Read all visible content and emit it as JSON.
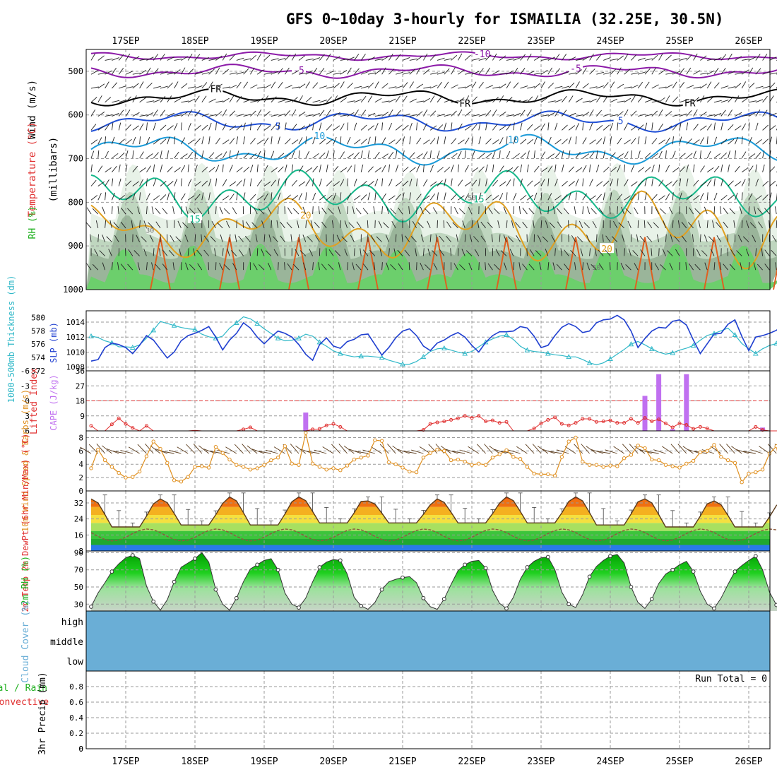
{
  "title": "GFS 0~10day 3-hourly for ISMAILIA (32.25E, 30.5N)",
  "days": [
    "17SEP",
    "18SEP",
    "19SEP",
    "20SEP",
    "21SEP",
    "22SEP",
    "23SEP",
    "24SEP",
    "25SEP",
    "26SEP"
  ],
  "colors": {
    "frame": "#000000",
    "grid": "#9a9a9a",
    "rh_light": "#e8f2e8",
    "rh_mid": "#bfd6bf",
    "rh_dark": "#9ab59a",
    "rh_green": "#6ccf6c",
    "iso_m10": "#8c1aa8",
    "iso_m5": "#8c1aa8",
    "iso_fr": "#000000",
    "iso_5": "#1f4fd6",
    "iso_10": "#1a9ad8",
    "iso_15": "#15b88a",
    "iso_20": "#e0a020",
    "iso_25": "#e06020",
    "slp": "#1f3fd0",
    "thickness": "#30b8c8",
    "li": "#e03030",
    "cape": "#c070f0",
    "wind10": "#e09020",
    "barb": "#5a3a1a",
    "temp_line": "#5a3a1a",
    "dew_line": "#8b5a3c",
    "rh2m": "#20b020",
    "cloud": "#6aaed6",
    "cloud_high": "#f4f4f8",
    "label_red": "#e03030",
    "label_green": "#20b020",
    "label_blue": "#1f3fd0",
    "label_cyan": "#30b8c8",
    "label_orange": "#e09020",
    "label_purple": "#c070f0",
    "label_gray": "#6aaed6"
  },
  "chart_data": [
    {
      "type": "contour",
      "name": "upper-air cross section",
      "ylabel": "(millibars)",
      "legend_labels": [
        "Wind (m/s)",
        "Temperature (°C)",
        "RH (%)"
      ],
      "y_ticks": [
        500,
        600,
        700,
        800,
        900,
        1000
      ],
      "ylim": [
        450,
        1000
      ],
      "isotherms": [
        {
          "label": "-10",
          "kind": "m10",
          "base": 465,
          "amp": 6,
          "labels_at": [
            5.15
          ]
        },
        {
          "label": "-5",
          "kind": "m5",
          "base": 500,
          "amp": 10,
          "labels_at": [
            2.5,
            6.5
          ]
        },
        {
          "label": "FR",
          "kind": "fr",
          "base": 560,
          "amp": 12,
          "labels_at": [
            1.3,
            4.9,
            8.15
          ]
        },
        {
          "label": "5",
          "kind": "5",
          "base": 615,
          "amp": 15,
          "labels_at": [
            2.2,
            7.15
          ]
        },
        {
          "label": "10",
          "kind": "10",
          "base": 680,
          "amp": 22,
          "labels_at": [
            2.8,
            5.6
          ]
        },
        {
          "label": "15",
          "kind": "15",
          "base": 785,
          "amp": 25,
          "labels_at": [
            1.0,
            5.1
          ]
        },
        {
          "label": "20",
          "kind": "20",
          "base": 860,
          "amp": 40,
          "labels_at": [
            2.6,
            6.95
          ]
        }
      ],
      "rh_labels": [
        "30",
        "50",
        "50"
      ]
    },
    {
      "type": "line",
      "name": "SLP and thickness",
      "ylabel_left": "1000-500mb Thickness (dm)",
      "ylabel_right": "SLP (mb)",
      "left_ticks": [
        572,
        574,
        576,
        578,
        580
      ],
      "right_ticks": [
        1008,
        1010,
        1012,
        1014
      ],
      "ylim_left": [
        572,
        581
      ],
      "ylim_right": [
        1007.5,
        1015.5
      ],
      "series": [
        {
          "name": "SLP (mb)",
          "values": [
            1008.8,
            1009.0,
            1010.6,
            1011.2,
            1011.0,
            1010.6,
            1009.8,
            1010.9,
            1012.2,
            1011.6,
            1010.4,
            1009.2,
            1010.0,
            1011.5,
            1012.2,
            1012.5,
            1012.9,
            1013.4,
            1012.0,
            1010.3,
            1011.6,
            1012.5,
            1013.9,
            1013.2,
            1012.0,
            1011.1,
            1012.0,
            1012.8,
            1012.5,
            1012.0,
            1011.0,
            1009.7,
            1008.9,
            1011.0,
            1011.9,
            1010.8,
            1010.5,
            1011.4,
            1011.7,
            1012.3,
            1012.4,
            1011.0,
            1009.6,
            1010.6,
            1011.9,
            1012.8,
            1013.1,
            1012.2,
            1010.8,
            1010.2,
            1011.2,
            1011.6,
            1012.2,
            1012.6,
            1012.0,
            1010.9,
            1010.0,
            1011.3,
            1012.2,
            1012.7,
            1012.7,
            1012.8,
            1013.4,
            1013.2,
            1012.1,
            1010.6,
            1010.9,
            1012.2,
            1013.3,
            1013.8,
            1013.4,
            1012.6,
            1012.8,
            1013.9,
            1014.3,
            1014.4,
            1014.9,
            1014.3,
            1012.8,
            1010.6,
            1011.8,
            1012.8,
            1013.3,
            1013.2,
            1014.1,
            1014.3,
            1013.6,
            1011.6,
            1009.8,
            1011.1,
            1012.4,
            1012.5,
            1013.7,
            1014.3,
            1012.1,
            1010.2,
            1012.0,
            1012.2,
            1012.5,
            1012.9,
            1013.7
          ]
        },
        {
          "name": "Thickness (dm)",
          "values": [
            577.2,
            577.0,
            576.5,
            576.2,
            575.6,
            575.6,
            575.5,
            575.9,
            576.9,
            578.1,
            579.4,
            579.1,
            578.8,
            578.5,
            578.3,
            578.2,
            577.5,
            577.1,
            576.9,
            577.2,
            578.4,
            579.2,
            580.1,
            579.8,
            579.1,
            578.3,
            577.6,
            576.9,
            576.5,
            576.6,
            576.9,
            577.5,
            577.2,
            576.3,
            575.7,
            575.0,
            574.6,
            574.3,
            574.1,
            574.2,
            574.2,
            574.1,
            574.0,
            573.6,
            573.3,
            573.0,
            573.0,
            573.4,
            574.1,
            574.9,
            575.3,
            575.4,
            575.1,
            574.8,
            574.6,
            574.9,
            575.6,
            576.3,
            576.8,
            577.2,
            577.4,
            576.7,
            575.7,
            575.1,
            574.9,
            574.8,
            574.6,
            574.4,
            574.3,
            574.1,
            574.1,
            573.7,
            573.2,
            572.9,
            573.2,
            573.8,
            574.5,
            575.2,
            576.0,
            576.4,
            575.9,
            575.3,
            574.8,
            574.5,
            574.7,
            575.1,
            575.4,
            575.8,
            576.6,
            577.3,
            577.6,
            578.0,
            578.4,
            577.4,
            576.1,
            575.3,
            574.6,
            575.3,
            575.8,
            576.1,
            575.5
          ]
        }
      ]
    },
    {
      "type": "bar+line",
      "name": "CAPE and Lifted Index",
      "ylabel_left": "Lifted Index",
      "ylabel_right": "CAPE (J/kg)",
      "li_ticks": [
        -6,
        -3,
        0,
        3,
        6
      ],
      "cape_ticks": [
        9,
        18,
        27,
        36
      ],
      "li_range": [
        6,
        -6
      ],
      "cape_range": [
        0,
        36
      ],
      "li": [
        5.0,
        6.5,
        7.2,
        4.7,
        3.5,
        4.6,
        5.4,
        6.2,
        5.0,
        6.4,
        7.0,
        7.5,
        7.1,
        6.8,
        6.8,
        5.9,
        6.1,
        6.6,
        6.9,
        6.8,
        6.4,
        6.8,
        5.7,
        5.3,
        6.0,
        6.5,
        6.6,
        6.4,
        6.1,
        6.3,
        6.8,
        6.9,
        5.7,
        5.6,
        4.9,
        4.6,
        5.2,
        7.2,
        6.8,
        6.8,
        6.7,
        6.0,
        6.9,
        7.4,
        7.1,
        6.3,
        7.1,
        6.9,
        5.8,
        4.6,
        4.3,
        4.1,
        3.8,
        3.5,
        3.0,
        3.4,
        3.0,
        4.1,
        3.9,
        4.4,
        4.2,
        6.0,
        7.6,
        7.2,
        5.5,
        4.5,
        3.8,
        3.3,
        4.6,
        4.9,
        4.4,
        3.6,
        3.6,
        4.2,
        4.1,
        3.9,
        4.4,
        4.4,
        3.6,
        4.4,
        3.4,
        4.1,
        3.7,
        4.5,
        5.3,
        4.5,
        4.8,
        5.6,
        5.2,
        5.5,
        6.4,
        6.4,
        7.4,
        7.6,
        6.5,
        6.0,
        5.2,
        5.8,
        6.2,
        6.8,
        5.7
      ],
      "cape": [
        0,
        0,
        0,
        0,
        0,
        0,
        0,
        0,
        0,
        0,
        0,
        0,
        0,
        0,
        0,
        0,
        0,
        0,
        0,
        0,
        0,
        0,
        0,
        0,
        0,
        0,
        0,
        0,
        0,
        0,
        0,
        11,
        0,
        0,
        0,
        0,
        0,
        0,
        0,
        0,
        0,
        0,
        0,
        0,
        0,
        0,
        0,
        0,
        0,
        0,
        0,
        0,
        0,
        0,
        0,
        0,
        0,
        0,
        0,
        0,
        0,
        0,
        0,
        0,
        0,
        0,
        0,
        0,
        0,
        0,
        0,
        0,
        0,
        0,
        0,
        0,
        0,
        0,
        0,
        0,
        21,
        0,
        34,
        0,
        1,
        0,
        34,
        0,
        0,
        0,
        0,
        0,
        0,
        0,
        0,
        0,
        0,
        2,
        0,
        0,
        0
      ]
    },
    {
      "type": "line",
      "name": "10m wind speed",
      "ylabel": "10m Wind Speed & Barbs (m/s)",
      "y_ticks": [
        0,
        2,
        4,
        6,
        8
      ],
      "ylim": [
        0,
        9
      ],
      "values": [
        3.4,
        6.2,
        4.6,
        3.6,
        2.7,
        2.0,
        2.1,
        2.9,
        5.2,
        7.4,
        6.3,
        4.2,
        1.6,
        1.4,
        2.1,
        3.6,
        3.7,
        3.5,
        6.6,
        5.7,
        4.7,
        3.9,
        3.6,
        3.2,
        3.4,
        3.9,
        4.6,
        5.0,
        6.7,
        4.1,
        3.9,
        8.7,
        4.1,
        3.6,
        3.2,
        3.4,
        3.1,
        3.8,
        4.7,
        5.0,
        5.3,
        7.6,
        7.5,
        4.3,
        4.0,
        3.5,
        2.9,
        2.8,
        5.0,
        5.7,
        6.2,
        6.0,
        4.6,
        4.7,
        4.4,
        3.9,
        4.1,
        3.9,
        5.0,
        5.5,
        6.1,
        5.1,
        4.8,
        3.6,
        2.6,
        2.5,
        2.5,
        2.3,
        5.1,
        7.4,
        8.0,
        4.4,
        3.9,
        3.9,
        3.6,
        3.8,
        3.7,
        4.9,
        5.4,
        6.8,
        6.4,
        4.7,
        4.6,
        3.9,
        3.7,
        3.5,
        4.1,
        4.5,
        5.8,
        6.0,
        6.9,
        5.1,
        4.6,
        4.2,
        1.3,
        2.6,
        2.8,
        3.2,
        5.6,
        6.7,
        0.8
      ]
    },
    {
      "type": "line",
      "name": "2m temperature and dewpoint",
      "ylabel": "2m Temp 2m DewPt (6hr Min/Max) (°C)",
      "y_ticks": [
        8,
        16,
        24,
        32
      ],
      "ylim": [
        8,
        38
      ],
      "temp_min_day": [
        20,
        21,
        21,
        22,
        22,
        22,
        22,
        21,
        20,
        20
      ],
      "temp_max_day": [
        34,
        34,
        35,
        35,
        33,
        34,
        35,
        35,
        34,
        33
      ],
      "dew_range": [
        13,
        19
      ]
    },
    {
      "type": "area",
      "name": "2m relative humidity",
      "ylabel": "2m RH (%)",
      "y_ticks": [
        30,
        50,
        70,
        90
      ],
      "ylim": [
        22,
        92
      ],
      "values": [
        27,
        43,
        55,
        68,
        77,
        84,
        87,
        83,
        51,
        33,
        23,
        35,
        56,
        73,
        78,
        83,
        90,
        79,
        47,
        30,
        23,
        37,
        56,
        71,
        76,
        81,
        83,
        70,
        43,
        30,
        26,
        37,
        56,
        73,
        79,
        82,
        81,
        65,
        38,
        28,
        24,
        32,
        47,
        56,
        59,
        61,
        62,
        55,
        37,
        27,
        24,
        36,
        53,
        69,
        76,
        80,
        81,
        72,
        46,
        31,
        25,
        38,
        59,
        73,
        80,
        84,
        85,
        70,
        44,
        30,
        26,
        41,
        62,
        74,
        81,
        86,
        88,
        78,
        50,
        32,
        25,
        36,
        54,
        65,
        70,
        76,
        80,
        68,
        45,
        30,
        25,
        37,
        53,
        68,
        75,
        81,
        86,
        70,
        44,
        29,
        26
      ]
    },
    {
      "type": "heatmap",
      "name": "cloud cover",
      "ylabel": "Cloud Cover (%)",
      "levels": [
        "high",
        "middle",
        "low"
      ],
      "high_cover_start": 23.0,
      "high_cover_end": 23.5
    },
    {
      "type": "bar",
      "name": "3hr precipitation",
      "ylabel": "3hr Precip (mm)",
      "legend_labels": [
        "Total / Rain",
        "Convective"
      ],
      "y_ticks": [
        0,
        0.2,
        0.4,
        0.6,
        0.8
      ],
      "ylim": [
        0,
        1.0
      ],
      "values": [],
      "run_total_label": "Run Total = 0"
    }
  ]
}
